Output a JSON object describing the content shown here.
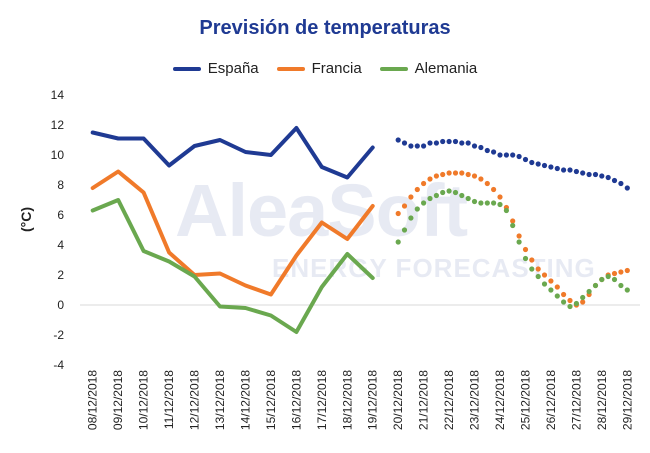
{
  "watermark": {
    "brand": "AleaSoft",
    "tagline": "ENERGY FORECASTING"
  },
  "chart_data": {
    "type": "line",
    "title": "Previsión de temperaturas",
    "xlabel": "",
    "ylabel": "(°C)",
    "ylim": [
      -4,
      14
    ],
    "yticks": [
      -4,
      -2,
      0,
      2,
      4,
      6,
      8,
      10,
      12,
      14
    ],
    "grid": false,
    "legend_position": "top",
    "categories": [
      "08/12/2018",
      "09/12/2018",
      "10/12/2018",
      "11/12/2018",
      "12/12/2018",
      "13/12/2018",
      "14/12/2018",
      "15/12/2018",
      "16/12/2018",
      "17/12/2018",
      "18/12/2018",
      "19/12/2018",
      "20/12/2018",
      "21/12/2018",
      "22/12/2018",
      "23/12/2018",
      "24/12/2018",
      "25/12/2018",
      "26/12/2018",
      "27/12/2018",
      "28/12/2018",
      "29/12/2018"
    ],
    "series": [
      {
        "name": "España",
        "color": "#1f3a93",
        "observed": [
          11.5,
          11.1,
          11.1,
          9.3,
          10.6,
          11.0,
          10.2,
          10.0,
          11.8,
          9.2,
          8.5,
          10.5
        ],
        "forecast_x": [
          20.0,
          20.25,
          20.5,
          20.75,
          21.0,
          21.25,
          21.5,
          21.75,
          22.0,
          22.25,
          22.5,
          22.75,
          23.0,
          23.25,
          23.5,
          23.75,
          24.0,
          24.25,
          24.5,
          24.75,
          25.0,
          25.25,
          25.5,
          25.75,
          26.0,
          26.25,
          26.5,
          26.75,
          27.0,
          27.25,
          27.5,
          27.75,
          28.0,
          28.25,
          28.5,
          28.75,
          29.0
        ],
        "forecast": [
          11.0,
          10.8,
          10.6,
          10.6,
          10.6,
          10.8,
          10.8,
          10.9,
          10.9,
          10.9,
          10.8,
          10.8,
          10.6,
          10.5,
          10.3,
          10.2,
          10.0,
          10.0,
          10.0,
          9.9,
          9.7,
          9.5,
          9.4,
          9.3,
          9.2,
          9.1,
          9.0,
          9.0,
          8.9,
          8.8,
          8.7,
          8.7,
          8.6,
          8.5,
          8.3,
          8.1,
          7.8
        ]
      },
      {
        "name": "Francia",
        "color": "#f07a2a",
        "observed": [
          7.8,
          8.9,
          7.5,
          3.5,
          2.0,
          2.1,
          1.3,
          0.7,
          3.3,
          5.5,
          4.4,
          6.6
        ],
        "forecast_x": [
          20.0,
          20.25,
          20.5,
          20.75,
          21.0,
          21.25,
          21.5,
          21.75,
          22.0,
          22.25,
          22.5,
          22.75,
          23.0,
          23.25,
          23.5,
          23.75,
          24.0,
          24.25,
          24.5,
          24.75,
          25.0,
          25.25,
          25.5,
          25.75,
          26.0,
          26.25,
          26.5,
          26.75,
          27.0,
          27.25,
          27.5,
          27.75,
          28.0,
          28.25,
          28.5,
          28.75,
          29.0
        ],
        "forecast": [
          6.1,
          6.6,
          7.2,
          7.7,
          8.1,
          8.4,
          8.6,
          8.7,
          8.8,
          8.8,
          8.8,
          8.7,
          8.6,
          8.4,
          8.1,
          7.7,
          7.2,
          6.5,
          5.6,
          4.6,
          3.7,
          3.0,
          2.4,
          2.0,
          1.6,
          1.2,
          0.7,
          0.3,
          0.0,
          0.2,
          0.7,
          1.3,
          1.7,
          2.0,
          2.1,
          2.2,
          2.3
        ]
      },
      {
        "name": "Alemania",
        "color": "#6aa84f",
        "observed": [
          6.3,
          7.0,
          3.6,
          2.9,
          1.9,
          -0.1,
          -0.2,
          -0.7,
          -1.8,
          1.2,
          3.4,
          1.8
        ],
        "forecast_x": [
          20.0,
          20.25,
          20.5,
          20.75,
          21.0,
          21.25,
          21.5,
          21.75,
          22.0,
          22.25,
          22.5,
          22.75,
          23.0,
          23.25,
          23.5,
          23.75,
          24.0,
          24.25,
          24.5,
          24.75,
          25.0,
          25.25,
          25.5,
          25.75,
          26.0,
          26.25,
          26.5,
          26.75,
          27.0,
          27.25,
          27.5,
          27.75,
          28.0,
          28.25,
          28.5,
          28.75,
          29.0
        ],
        "forecast": [
          4.2,
          5.0,
          5.8,
          6.4,
          6.8,
          7.1,
          7.3,
          7.5,
          7.6,
          7.5,
          7.3,
          7.1,
          6.9,
          6.8,
          6.8,
          6.8,
          6.7,
          6.3,
          5.3,
          4.2,
          3.1,
          2.4,
          1.9,
          1.4,
          1.0,
          0.6,
          0.2,
          -0.1,
          0.1,
          0.5,
          0.9,
          1.3,
          1.7,
          1.9,
          1.7,
          1.3,
          1.0
        ]
      }
    ]
  }
}
